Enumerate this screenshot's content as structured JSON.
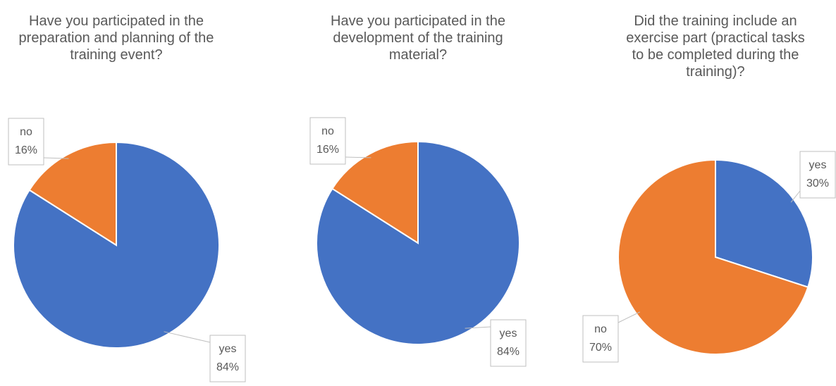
{
  "chart_data": [
    {
      "type": "pie",
      "title": "Have you participated in the preparation and planning of the training event?",
      "categories": [
        "yes",
        "no"
      ],
      "values": [
        84,
        16
      ],
      "value_labels": [
        "84%",
        "16%"
      ],
      "colors": [
        "#4472c4",
        "#ed7d31"
      ]
    },
    {
      "type": "pie",
      "title": "Have you participated in the development of the training material?",
      "categories": [
        "yes",
        "no"
      ],
      "values": [
        84,
        16
      ],
      "value_labels": [
        "84%",
        "16%"
      ],
      "colors": [
        "#4472c4",
        "#ed7d31"
      ]
    },
    {
      "type": "pie",
      "title": "Did the training include an exercise part (practical tasks to be completed during the training)?",
      "categories": [
        "yes",
        "no"
      ],
      "values": [
        30,
        70
      ],
      "value_labels": [
        "30%",
        "70%"
      ],
      "colors": [
        "#4472c4",
        "#ed7d31"
      ]
    }
  ]
}
